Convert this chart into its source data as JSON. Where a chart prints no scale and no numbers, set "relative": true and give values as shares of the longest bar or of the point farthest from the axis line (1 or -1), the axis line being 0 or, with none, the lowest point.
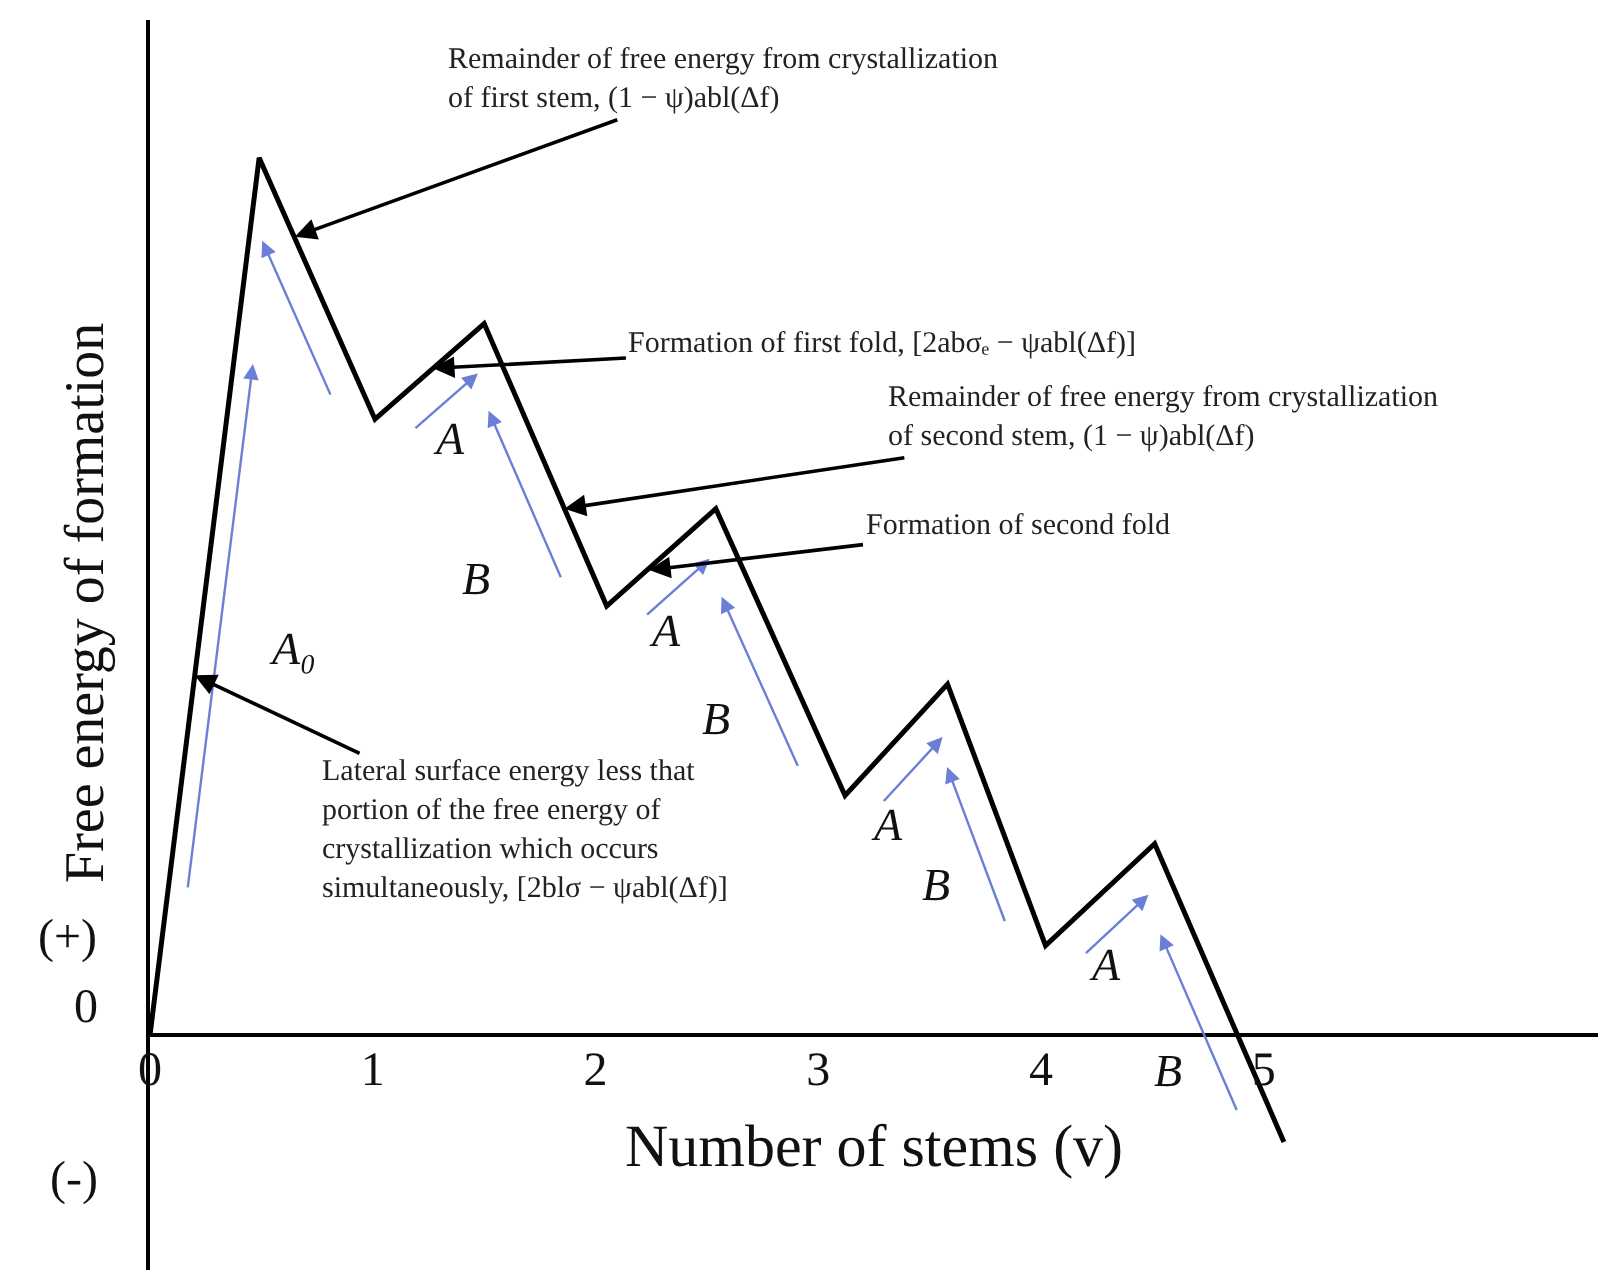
{
  "chart_data": {
    "type": "line",
    "relative": true,
    "xlabel": "Number of stems (v)",
    "ylabel": "Free energy of formation",
    "x": [
      0,
      0.49,
      1.01,
      1.5,
      2.05,
      2.54,
      3.12,
      3.58,
      4.02,
      4.51,
      5.09
    ],
    "xlim": [
      0,
      6.5
    ],
    "xticks": [
      0,
      1,
      2,
      3,
      4,
      5
    ],
    "series": [
      {
        "color": "#000000",
        "values": [
          0,
          1,
          0.702,
          0.811,
          0.489,
          0.6,
          0.273,
          0.4,
          0.102,
          0.218,
          -0.122
        ]
      }
    ],
    "annotations": [
      {
        "text": "Remainder of free energy from crystallization\nof first stem, (1 − ψ)abl(Δf)",
        "x": 0.65,
        "y": 0.91
      },
      {
        "text": "Formation of first fold, [2abσₑ − ψabl(Δf)]",
        "x": 1.27,
        "y": 0.76
      },
      {
        "text": "Remainder of free energy from crystallization\nof second stem, (1 − ψ)abl(Δf)",
        "x": 1.86,
        "y": 0.6
      },
      {
        "text": "Formation of second fold",
        "x": 2.24,
        "y": 0.53
      },
      {
        "text": "Lateral surface energy less that\nportion of the free energy of\ncrystallization which occurs\nsimultaneously, [2blσ − ψabl(Δf)]",
        "x": 0.2,
        "y": 0.41
      },
      "A₀",
      "A",
      "B",
      "A",
      "B",
      "A",
      "B",
      "A",
      "B",
      "0",
      "(+)",
      "(-)"
    ]
  }
}
